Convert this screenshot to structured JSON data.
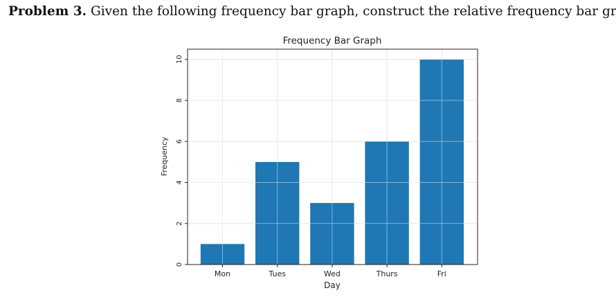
{
  "problem": {
    "label": "Problem 3.",
    "text": "Given the following frequency bar graph, construct the relative frequency bar graph."
  },
  "chart_data": {
    "type": "bar",
    "title": "Frequency Bar Graph",
    "xlabel": "Day",
    "ylabel": "Frequency",
    "categories": [
      "Mon",
      "Tues",
      "Wed",
      "Thurs",
      "Fri"
    ],
    "values": [
      1,
      5,
      3,
      6,
      10
    ],
    "ylim": [
      0,
      10.5
    ],
    "yticks": [
      0,
      2,
      4,
      6,
      8,
      10
    ],
    "grid": true,
    "bar_color": "#1f77b4"
  }
}
